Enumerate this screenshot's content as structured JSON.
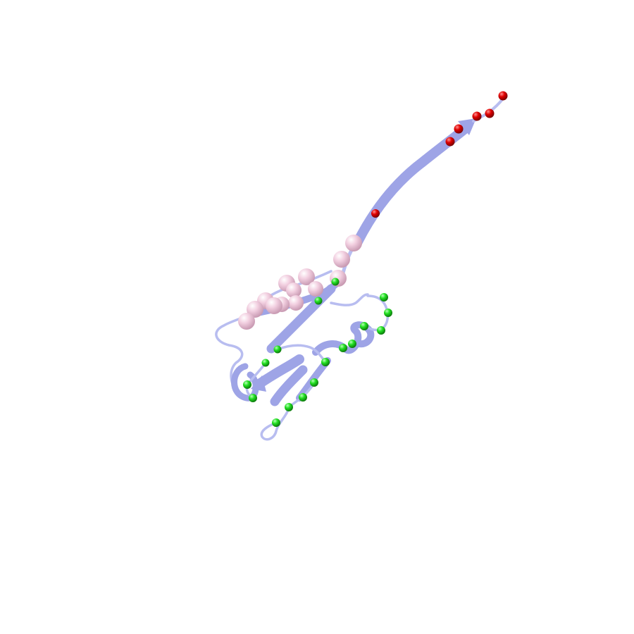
{
  "scene": {
    "background": "#ffffff",
    "cartoon_color": "#b8bdf0",
    "cartoon_dark": "#9ea4e6",
    "sphere_groups": [
      {
        "name": "pink-residues",
        "color": "#f2cfe0",
        "shade": "#c99bb3",
        "icon": "large-sphere"
      },
      {
        "name": "red-residues",
        "color": "#e00000",
        "shade": "#7a0000",
        "icon": "small-sphere"
      },
      {
        "name": "green-residues",
        "color": "#22e022",
        "shade": "#0c7a0c",
        "icon": "small-sphere"
      }
    ]
  }
}
